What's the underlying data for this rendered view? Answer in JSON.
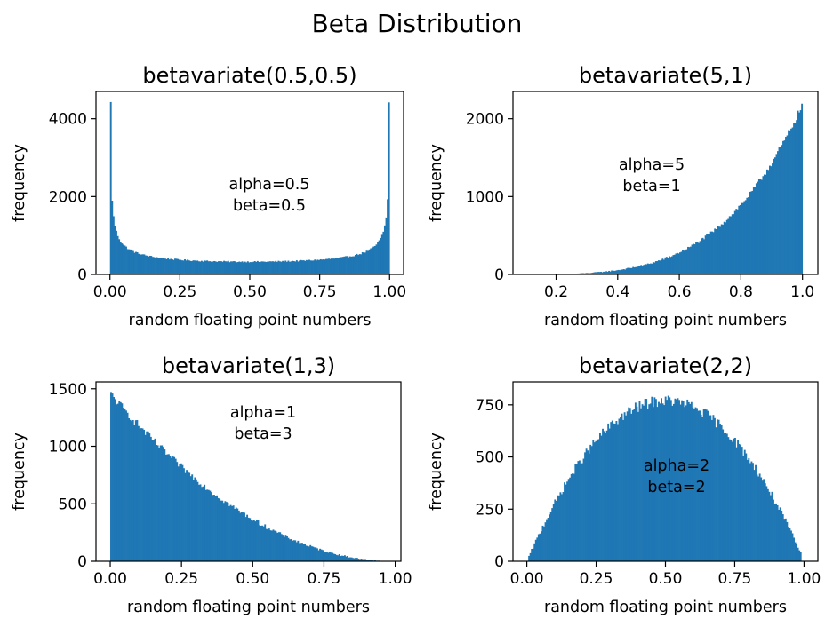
{
  "figure_title": "Beta Distribution",
  "chart_data": [
    {
      "type": "bar",
      "title": "betavariate(0.5,0.5)",
      "xlabel": "random floating point numbers",
      "ylabel": "frequency",
      "annotation": [
        "alpha=0.5",
        "beta=0.5"
      ],
      "alpha": 0.5,
      "beta": 0.5,
      "bins": 200,
      "xlim": [
        -0.05,
        1.05
      ],
      "ylim": [
        0,
        4700
      ],
      "xticks": [
        0.0,
        0.25,
        0.5,
        0.75,
        1.0
      ],
      "xtick_labels": [
        "0.00",
        "0.25",
        "0.50",
        "0.75",
        "1.00"
      ],
      "yticks": [
        0,
        2000,
        4000
      ],
      "ytick_labels": [
        "0",
        "2000",
        "4000"
      ],
      "peak_frequency": 4400,
      "bar_color": "#1f77b4"
    },
    {
      "type": "bar",
      "title": "betavariate(5,1)",
      "xlabel": "random floating point numbers",
      "ylabel": "frequency",
      "annotation": [
        "alpha=5",
        "beta=1"
      ],
      "alpha": 5,
      "beta": 1,
      "bins": 200,
      "xlim": [
        0.06,
        1.05
      ],
      "ylim": [
        0,
        2350
      ],
      "xticks": [
        0.2,
        0.4,
        0.6,
        0.8,
        1.0
      ],
      "xtick_labels": [
        "0.2",
        "0.4",
        "0.6",
        "0.8",
        "1.0"
      ],
      "yticks": [
        0,
        1000,
        2000
      ],
      "ytick_labels": [
        "0",
        "1000",
        "2000"
      ],
      "peak_frequency": 2170,
      "bar_color": "#1f77b4"
    },
    {
      "type": "bar",
      "title": "betavariate(1,3)",
      "xlabel": "random floating point numbers",
      "ylabel": "frequency",
      "annotation": [
        "alpha=1",
        "beta=3"
      ],
      "alpha": 1,
      "beta": 3,
      "bins": 200,
      "xlim": [
        -0.05,
        1.02
      ],
      "ylim": [
        0,
        1560
      ],
      "xticks": [
        0.0,
        0.25,
        0.5,
        0.75,
        1.0
      ],
      "xtick_labels": [
        "0.00",
        "0.25",
        "0.50",
        "0.75",
        "1.00"
      ],
      "yticks": [
        0,
        500,
        1000,
        1500
      ],
      "ytick_labels": [
        "0",
        "500",
        "1000",
        "1500"
      ],
      "peak_frequency": 1450,
      "bar_color": "#1f77b4"
    },
    {
      "type": "bar",
      "title": "betavariate(2,2)",
      "xlabel": "random floating point numbers",
      "ylabel": "frequency",
      "annotation": [
        "alpha=2",
        "beta=2"
      ],
      "alpha": 2,
      "beta": 2,
      "bins": 200,
      "xlim": [
        -0.05,
        1.05
      ],
      "ylim": [
        0,
        860
      ],
      "xticks": [
        0.0,
        0.25,
        0.5,
        0.75,
        1.0
      ],
      "xtick_labels": [
        "0.00",
        "0.25",
        "0.50",
        "0.75",
        "1.00"
      ],
      "yticks": [
        0,
        250,
        500,
        750
      ],
      "ytick_labels": [
        "0",
        "250",
        "500",
        "750"
      ],
      "peak_frequency": 770,
      "bar_color": "#1f77b4"
    }
  ]
}
